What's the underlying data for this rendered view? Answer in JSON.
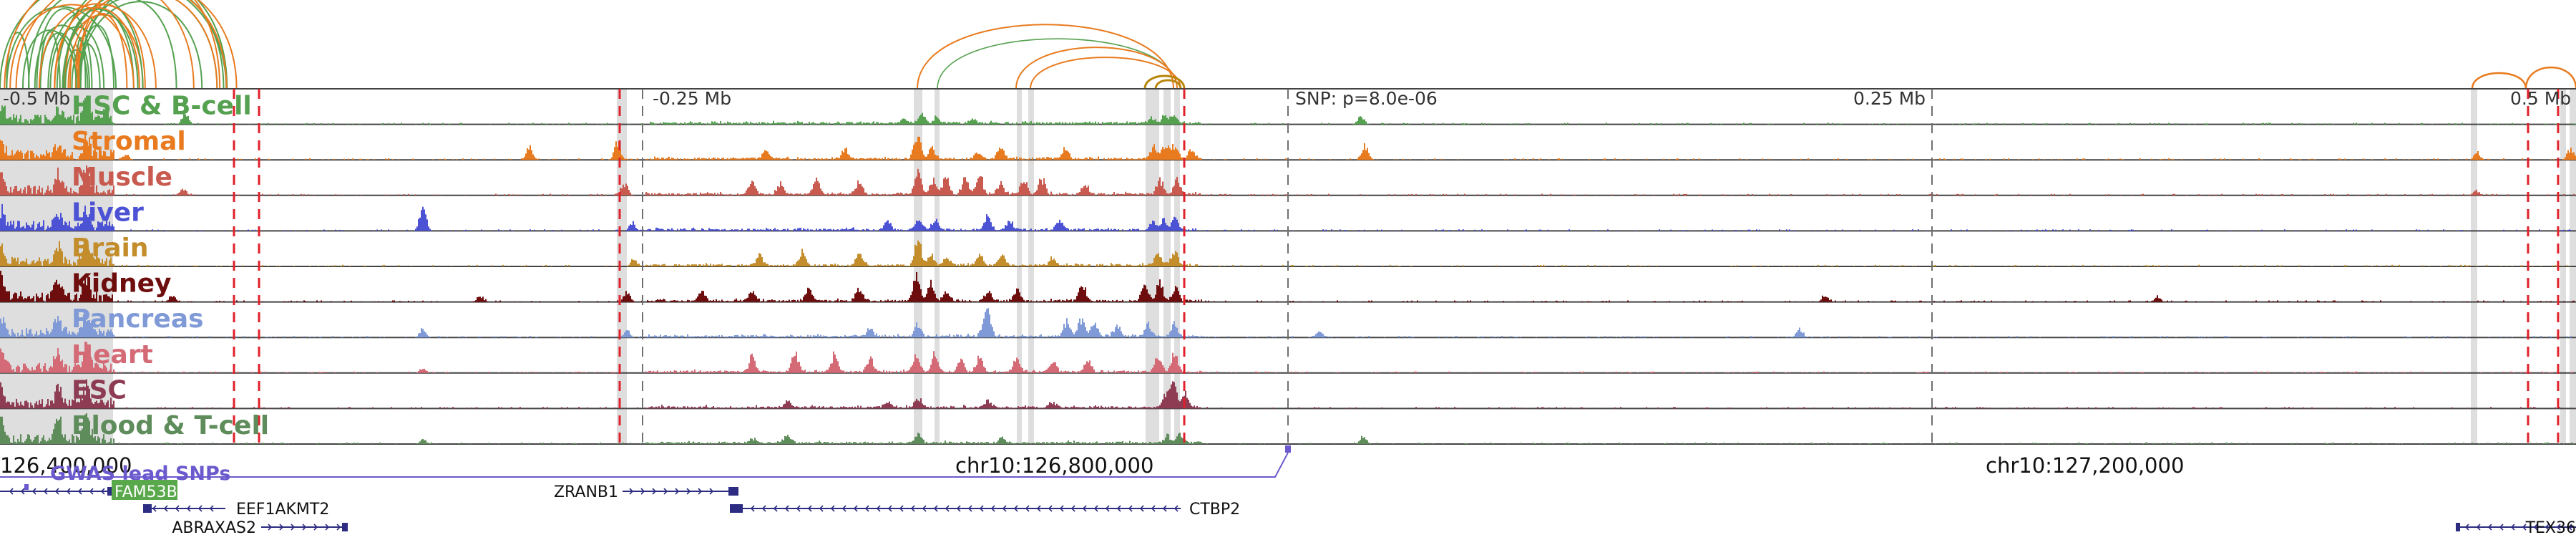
{
  "browser": {
    "tracks": [
      {
        "label": "HSC & B-cell",
        "color": "#55a150",
        "peaks": [
          [
            0,
            30
          ],
          [
            80,
            22
          ],
          [
            120,
            38
          ],
          [
            145,
            12
          ],
          [
            258,
            18
          ],
          [
            1262,
            7
          ],
          [
            1287,
            16
          ],
          [
            1308,
            9
          ],
          [
            1358,
            8
          ],
          [
            1609,
            10
          ],
          [
            1627,
            12
          ],
          [
            1640,
            14
          ],
          [
            1901,
            14
          ]
        ]
      },
      {
        "label": "Stromal",
        "color": "#e87b1f",
        "peaks": [
          [
            0,
            25
          ],
          [
            80,
            20
          ],
          [
            120,
            32
          ],
          [
            175,
            10
          ],
          [
            739,
            24
          ],
          [
            862,
            28
          ],
          [
            1070,
            15
          ],
          [
            1180,
            18
          ],
          [
            1281,
            42
          ],
          [
            1301,
            20
          ],
          [
            1366,
            10
          ],
          [
            1398,
            20
          ],
          [
            1488,
            16
          ],
          [
            1612,
            20
          ],
          [
            1628,
            24
          ],
          [
            1641,
            24
          ],
          [
            1665,
            16
          ],
          [
            1907,
            24
          ],
          [
            3461,
            12
          ],
          [
            3591,
            18
          ]
        ]
      },
      {
        "label": "Muscle",
        "color": "#c85a4f",
        "peaks": [
          [
            0,
            34
          ],
          [
            80,
            30
          ],
          [
            120,
            40
          ],
          [
            255,
            10
          ],
          [
            872,
            20
          ],
          [
            1050,
            22
          ],
          [
            1090,
            18
          ],
          [
            1140,
            26
          ],
          [
            1200,
            22
          ],
          [
            1282,
            36
          ],
          [
            1303,
            24
          ],
          [
            1321,
            28
          ],
          [
            1348,
            26
          ],
          [
            1368,
            30
          ],
          [
            1398,
            18
          ],
          [
            1430,
            24
          ],
          [
            1455,
            26
          ],
          [
            1515,
            18
          ],
          [
            1620,
            24
          ],
          [
            1644,
            26
          ],
          [
            3460,
            8
          ]
        ]
      },
      {
        "label": "Liver",
        "color": "#4c52d4",
        "peaks": [
          [
            0,
            30
          ],
          [
            80,
            26
          ],
          [
            120,
            30
          ],
          [
            590,
            38
          ],
          [
            883,
            12
          ],
          [
            1240,
            14
          ],
          [
            1283,
            18
          ],
          [
            1306,
            14
          ],
          [
            1379,
            22
          ],
          [
            1410,
            16
          ],
          [
            1480,
            14
          ],
          [
            1610,
            14
          ],
          [
            1625,
            18
          ],
          [
            1641,
            18
          ]
        ]
      },
      {
        "label": "Brain",
        "color": "#c28d2a",
        "peaks": [
          [
            0,
            32
          ],
          [
            80,
            28
          ],
          [
            120,
            34
          ],
          [
            885,
            10
          ],
          [
            1060,
            18
          ],
          [
            1120,
            22
          ],
          [
            1200,
            18
          ],
          [
            1282,
            44
          ],
          [
            1300,
            18
          ],
          [
            1322,
            14
          ],
          [
            1368,
            18
          ],
          [
            1400,
            16
          ],
          [
            1470,
            12
          ],
          [
            1617,
            22
          ],
          [
            1640,
            26
          ]
        ]
      },
      {
        "label": "Kidney",
        "color": "#6e0d0d",
        "peaks": [
          [
            0,
            34
          ],
          [
            80,
            32
          ],
          [
            120,
            36
          ],
          [
            240,
            12
          ],
          [
            670,
            10
          ],
          [
            875,
            16
          ],
          [
            980,
            18
          ],
          [
            1050,
            14
          ],
          [
            1130,
            22
          ],
          [
            1200,
            22
          ],
          [
            1280,
            40
          ],
          [
            1300,
            30
          ],
          [
            1322,
            16
          ],
          [
            1380,
            16
          ],
          [
            1420,
            20
          ],
          [
            1512,
            30
          ],
          [
            1599,
            32
          ],
          [
            1620,
            30
          ],
          [
            1642,
            22
          ],
          [
            2550,
            10
          ],
          [
            3014,
            8
          ]
        ]
      },
      {
        "label": "Pancreas",
        "color": "#7f9ad6",
        "peaks": [
          [
            0,
            24
          ],
          [
            80,
            22
          ],
          [
            120,
            28
          ],
          [
            590,
            14
          ],
          [
            875,
            12
          ],
          [
            1215,
            14
          ],
          [
            1282,
            20
          ],
          [
            1375,
            22
          ],
          [
            1380,
            28
          ],
          [
            1490,
            24
          ],
          [
            1510,
            30
          ],
          [
            1528,
            24
          ],
          [
            1560,
            18
          ],
          [
            1604,
            22
          ],
          [
            1640,
            22
          ],
          [
            1843,
            10
          ],
          [
            2514,
            14
          ]
        ]
      },
      {
        "label": "Heart",
        "color": "#d46a76",
        "peaks": [
          [
            0,
            34
          ],
          [
            80,
            30
          ],
          [
            120,
            40
          ],
          [
            590,
            8
          ],
          [
            1050,
            24
          ],
          [
            1110,
            30
          ],
          [
            1165,
            28
          ],
          [
            1215,
            22
          ],
          [
            1280,
            30
          ],
          [
            1305,
            26
          ],
          [
            1342,
            20
          ],
          [
            1368,
            26
          ],
          [
            1420,
            20
          ],
          [
            1470,
            20
          ],
          [
            1520,
            20
          ],
          [
            1618,
            26
          ],
          [
            1640,
            32
          ]
        ]
      },
      {
        "label": "ESC",
        "color": "#8e3c54",
        "peaks": [
          [
            0,
            30
          ],
          [
            80,
            28
          ],
          [
            120,
            34
          ],
          [
            1100,
            10
          ],
          [
            1240,
            10
          ],
          [
            1282,
            16
          ],
          [
            1380,
            12
          ],
          [
            1470,
            10
          ],
          [
            1630,
            26
          ],
          [
            1640,
            34
          ],
          [
            1656,
            24
          ]
        ]
      },
      {
        "label": "Blood & T-cell",
        "color": "#5e8c5a",
        "peaks": [
          [
            0,
            36
          ],
          [
            80,
            34
          ],
          [
            120,
            40
          ],
          [
            590,
            8
          ],
          [
            1050,
            8
          ],
          [
            1100,
            12
          ],
          [
            1282,
            14
          ],
          [
            1400,
            10
          ],
          [
            1630,
            12
          ],
          [
            1648,
            16
          ],
          [
            1905,
            12
          ]
        ]
      }
    ],
    "ruler": {
      "dist_labels": [
        "-0.5 Mb",
        "-0.25 Mb",
        "SNP: p=8.0e-06",
        "0.25 Mb",
        "0.5 Mb"
      ],
      "coord_labels": [
        "126,400,000",
        "chr10:126,800,000",
        "chr10:127,200,000"
      ]
    },
    "gwas": {
      "label": "GWAS lead SNPs"
    },
    "genes": [
      {
        "name": "FAM53B",
        "highlight": true
      },
      {
        "name": "EEF1AKMT2",
        "highlight": false
      },
      {
        "name": "ABRAXAS2",
        "highlight": false
      },
      {
        "name": "ZRANB1",
        "highlight": false
      },
      {
        "name": "CTBP2",
        "highlight": false
      },
      {
        "name": "TEX36",
        "highlight": false
      }
    ],
    "colors": {
      "highlight_band": "#d8d8d8",
      "red_dashed": "#e0202a",
      "gray_dashed": "#707070",
      "track_border": "#444444",
      "gwas": "#6a5acd",
      "gene": "#2c2c82",
      "gene_highlight": "#5aa84c",
      "arc_orange": "#e87b1f",
      "arc_green": "#55a150"
    }
  }
}
